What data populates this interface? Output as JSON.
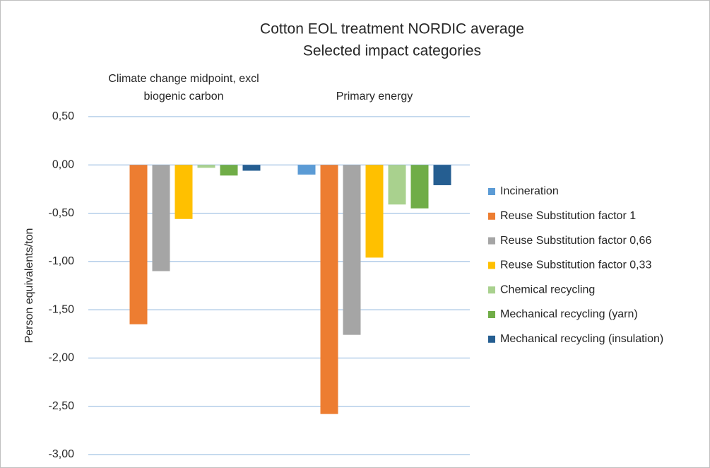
{
  "chart_data": {
    "type": "bar",
    "title": "Cotton EOL treatment NORDIC average",
    "subtitle": "Selected impact categories",
    "ylabel": "Person equivalents/ton",
    "categories": [
      "Climate change midpoint, excl biogenic carbon",
      "Primary energy"
    ],
    "series": [
      {
        "name": "Incineration",
        "color": "#5b9bd5",
        "values": [
          0.0,
          -0.1
        ]
      },
      {
        "name": "Reuse Substitution factor 1",
        "color": "#ed7d31",
        "values": [
          -1.65,
          -2.58
        ]
      },
      {
        "name": "Reuse Substitution factor 0,66",
        "color": "#a5a5a5",
        "values": [
          -1.1,
          -1.76
        ]
      },
      {
        "name": "Reuse Substitution factor 0,33",
        "color": "#ffc000",
        "values": [
          -0.56,
          -0.96
        ]
      },
      {
        "name": "Chemical recycling",
        "color": "#a9d18e",
        "values": [
          -0.03,
          -0.41
        ]
      },
      {
        "name": "Mechanical recycling (yarn)",
        "color": "#70ad47",
        "values": [
          -0.11,
          -0.45
        ]
      },
      {
        "name": "Mechanical recycling (insulation)",
        "color": "#255e91",
        "values": [
          -0.06,
          -0.21
        ]
      }
    ],
    "ylim": [
      -3,
      0.5
    ],
    "yticks": [
      {
        "value": 0.5,
        "label": "0,50"
      },
      {
        "value": 0,
        "label": "0,00"
      },
      {
        "value": -0.5,
        "label": "-0,50"
      },
      {
        "value": -1,
        "label": "-1,00"
      },
      {
        "value": -1.5,
        "label": "-1,50"
      },
      {
        "value": -2,
        "label": "-2,00"
      },
      {
        "value": -2.5,
        "label": "-2,50"
      },
      {
        "value": -3,
        "label": "-3,00"
      }
    ],
    "grid": true,
    "legend": "right"
  }
}
